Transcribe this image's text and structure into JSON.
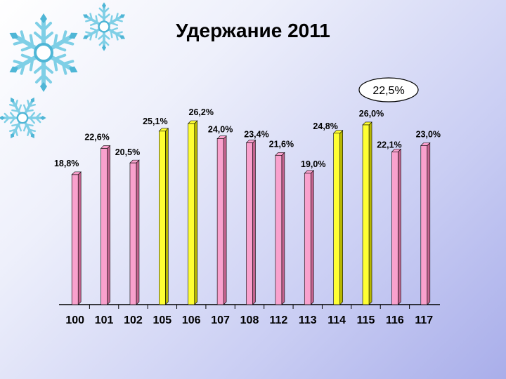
{
  "title": "Удержание 2011",
  "callout": "22,5%",
  "colors": {
    "pink": "#f9a1cd",
    "pink_dark": "#c4648f",
    "yellow": "#ffff33",
    "yellow_dark": "#b7b700"
  },
  "decorations": [
    "snowflake-icon-large",
    "snowflake-icon-small",
    "snowflake-icon-top"
  ],
  "chart_data": {
    "type": "bar",
    "categories": [
      "100",
      "101",
      "102",
      "105",
      "106",
      "107",
      "108",
      "112",
      "113",
      "114",
      "115",
      "116",
      "117"
    ],
    "values": [
      18.8,
      22.6,
      20.5,
      25.1,
      26.2,
      24.0,
      23.4,
      21.6,
      19.0,
      24.8,
      26.0,
      22.1,
      23.0
    ],
    "value_labels": [
      "18,8%",
      "22,6%",
      "20,5%",
      "25,1%",
      "26,2%",
      "24,0%",
      "23,4%",
      "21,6%",
      "19,0%",
      "24,8%",
      "26,0%",
      "22,1%",
      "23,0%"
    ],
    "bar_colors": [
      "pink",
      "pink",
      "pink",
      "yellow",
      "yellow",
      "pink",
      "pink",
      "pink",
      "pink",
      "yellow",
      "yellow",
      "pink",
      "pink"
    ],
    "ylim": [
      0,
      28
    ],
    "grid": false,
    "legend": "none"
  }
}
